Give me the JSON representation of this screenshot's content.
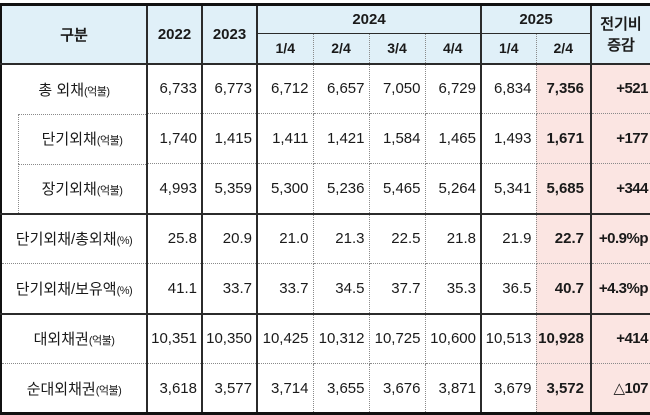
{
  "colors": {
    "header_bg": "#E0F0F8",
    "highlight_bg": "#FBE5E2",
    "grid_solid": "#2B2B2B",
    "grid_dotted": "#8A8A8A",
    "text": "#1A1A1A"
  },
  "table": {
    "header": {
      "category": "구분",
      "year_2022": "2022",
      "year_2023": "2023",
      "group_2024": {
        "label": "2024",
        "quarters": [
          "1/4",
          "2/4",
          "3/4",
          "4/4"
        ]
      },
      "group_2025": {
        "label": "2025",
        "quarters": [
          "1/4",
          "2/4"
        ]
      },
      "change_top": "전기비",
      "change_bottom": "증감"
    },
    "rows": [
      {
        "label": "총 외채",
        "unit": "(억불)",
        "indent": false,
        "divider": "dotted",
        "values": [
          "6,733",
          "6,773",
          "6,712",
          "6,657",
          "7,050",
          "6,729",
          "6,834"
        ],
        "latest": "7,356",
        "change": "+521"
      },
      {
        "label": "단기외채",
        "unit": "(억불)",
        "indent": true,
        "divider": "dotted",
        "values": [
          "1,740",
          "1,415",
          "1,411",
          "1,421",
          "1,584",
          "1,465",
          "1,493"
        ],
        "latest": "1,671",
        "change": "+177"
      },
      {
        "label": "장기외채",
        "unit": "(억불)",
        "indent": true,
        "divider": "solid",
        "values": [
          "4,993",
          "5,359",
          "5,300",
          "5,236",
          "5,465",
          "5,264",
          "5,341"
        ],
        "latest": "5,685",
        "change": "+344"
      },
      {
        "label": "단기외채/총외채",
        "unit": "(%)",
        "indent": false,
        "divider": "dotted",
        "values": [
          "25.8",
          "20.9",
          "21.0",
          "21.3",
          "22.5",
          "21.8",
          "21.9"
        ],
        "latest": "22.7",
        "change": "+0.9%p"
      },
      {
        "label": "단기외채/보유액",
        "unit": "(%)",
        "indent": false,
        "divider": "solid",
        "values": [
          "41.1",
          "33.7",
          "33.7",
          "34.5",
          "37.7",
          "35.3",
          "36.5"
        ],
        "latest": "40.7",
        "change": "+4.3%p"
      },
      {
        "label": "대외채권",
        "unit": "(억불)",
        "indent": false,
        "divider": "dotted",
        "values": [
          "10,351",
          "10,350",
          "10,425",
          "10,312",
          "10,725",
          "10,600",
          "10,513"
        ],
        "latest": "10,928",
        "change": "+414"
      },
      {
        "label": "순대외채권",
        "unit": "(억불)",
        "indent": false,
        "divider": "none",
        "values": [
          "3,618",
          "3,577",
          "3,714",
          "3,655",
          "3,676",
          "3,871",
          "3,679"
        ],
        "latest": "3,572",
        "change": "△107"
      }
    ]
  }
}
